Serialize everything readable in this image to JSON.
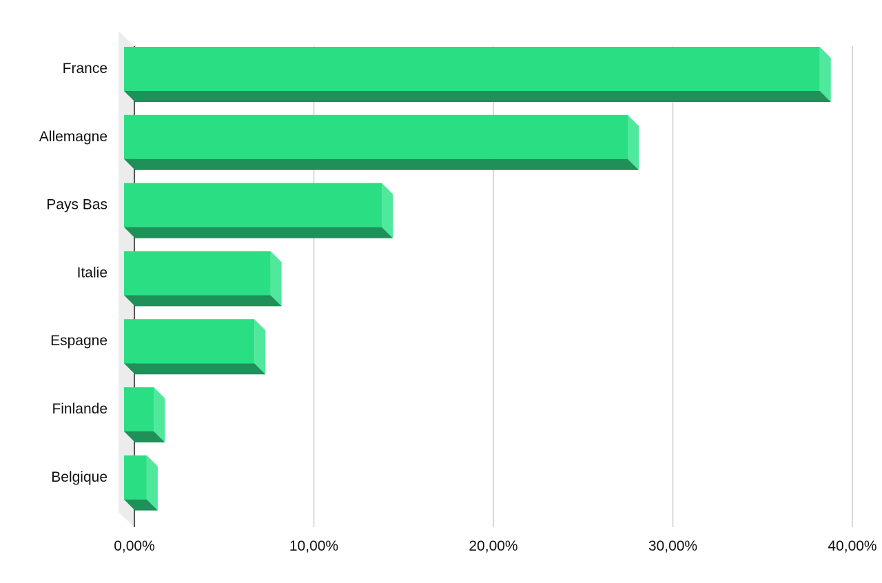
{
  "chart_data": {
    "type": "bar",
    "orientation": "horizontal",
    "style": "3d",
    "title": "",
    "xlabel": "",
    "ylabel": "",
    "categories": [
      "France",
      "Allemagne",
      "Pays Bas",
      "Italie",
      "Espagne",
      "Finlande",
      "Belgique"
    ],
    "values": [
      38.8,
      28.1,
      14.4,
      8.2,
      7.3,
      1.7,
      1.3
    ],
    "xlim": [
      0,
      40
    ],
    "xticks": [
      0,
      10,
      20,
      30,
      40
    ],
    "xtick_labels": [
      "0,00%",
      "10,00%",
      "20,00%",
      "30,00%",
      "40,00%"
    ],
    "grid": true,
    "legend": "none",
    "colors": {
      "bar_front": "#2ade83",
      "bar_side": "#4fe89c",
      "bar_bottom": "#1e9058",
      "gridline": "#cccccc",
      "axis": "#222222",
      "wall": "#ececec"
    }
  }
}
